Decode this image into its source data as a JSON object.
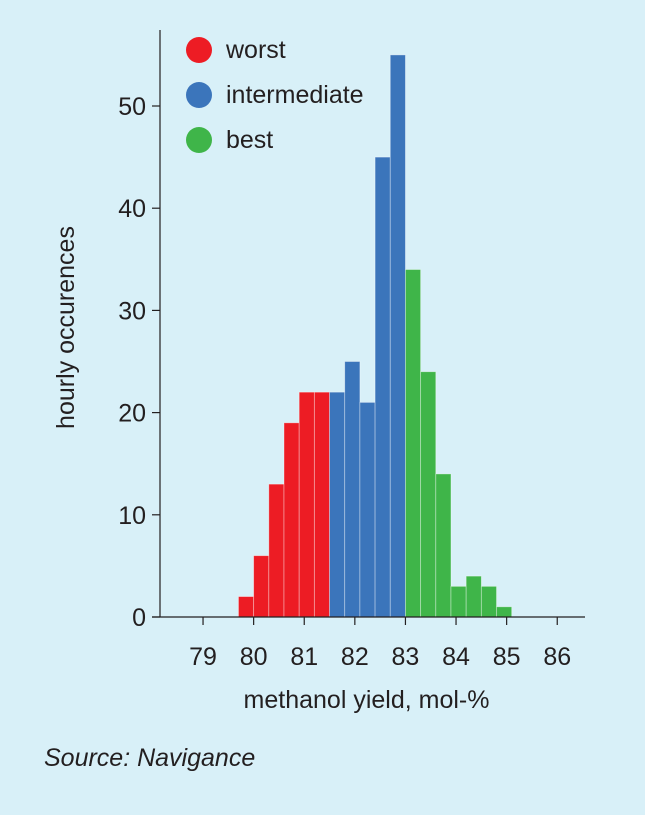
{
  "chart_data": {
    "type": "bar",
    "title": "",
    "xlabel": "methanol yield, mol-%",
    "ylabel": "hourly occurences",
    "xlim": [
      78.1,
      86.6
    ],
    "ylim": [
      0,
      57
    ],
    "x_ticks": [
      79,
      80,
      81,
      82,
      83,
      84,
      85,
      86
    ],
    "y_ticks": [
      0,
      10,
      20,
      30,
      40,
      50
    ],
    "bin_width": 0.3,
    "grid": false,
    "legend_position": "top-left",
    "series": [
      {
        "name": "worst",
        "color": "#ed1c24",
        "bins": [
          {
            "x0": 79.7,
            "value": 2
          },
          {
            "x0": 80.0,
            "value": 6
          },
          {
            "x0": 80.3,
            "value": 13
          },
          {
            "x0": 80.6,
            "value": 19
          },
          {
            "x0": 80.9,
            "value": 22
          },
          {
            "x0": 81.2,
            "value": 22
          }
        ]
      },
      {
        "name": "intermediate",
        "color": "#3b75bb",
        "bins": [
          {
            "x0": 81.5,
            "value": 22
          },
          {
            "x0": 81.8,
            "value": 25
          },
          {
            "x0": 82.1,
            "value": 21
          },
          {
            "x0": 82.4,
            "value": 45
          },
          {
            "x0": 82.7,
            "value": 55
          }
        ]
      },
      {
        "name": "best",
        "color": "#3fb549",
        "bins": [
          {
            "x0": 83.0,
            "value": 34
          },
          {
            "x0": 83.3,
            "value": 24
          },
          {
            "x0": 83.6,
            "value": 14
          },
          {
            "x0": 83.9,
            "value": 3
          },
          {
            "x0": 84.2,
            "value": 4
          },
          {
            "x0": 84.5,
            "value": 3
          },
          {
            "x0": 84.8,
            "value": 1
          }
        ]
      }
    ]
  },
  "source": "Source: Navigance"
}
